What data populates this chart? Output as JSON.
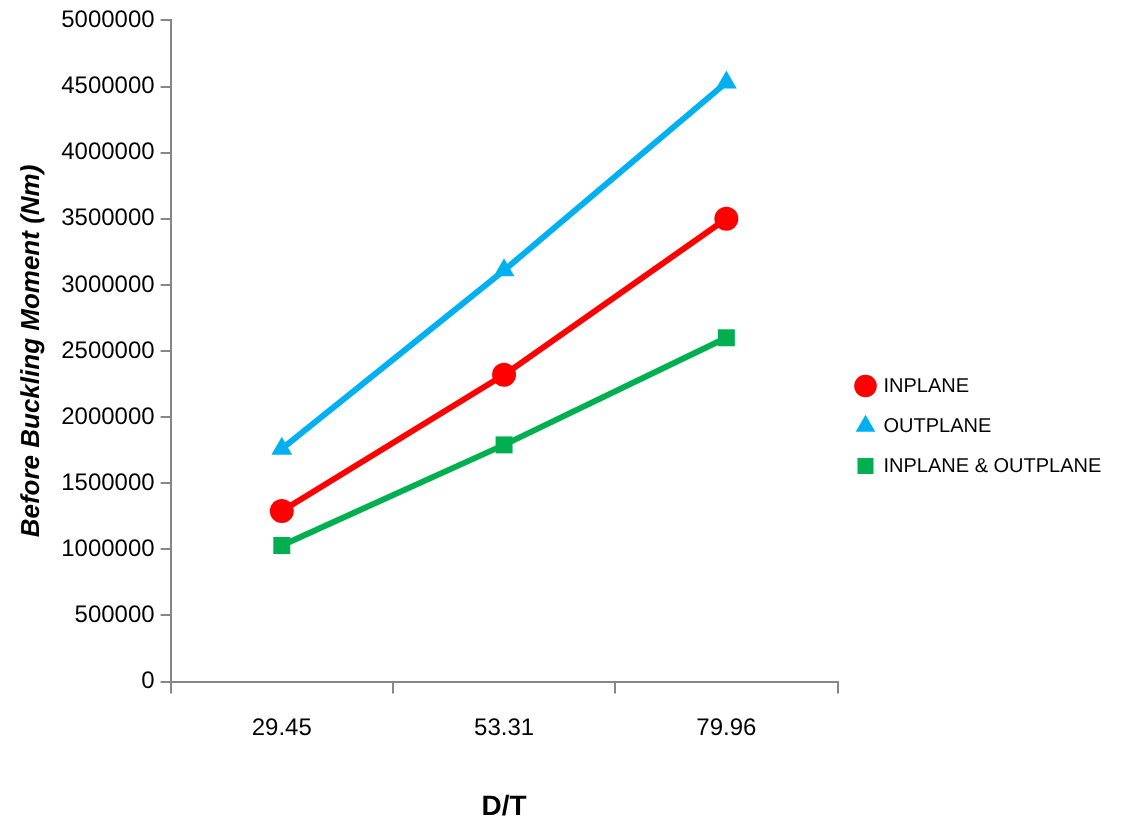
{
  "chart_data": {
    "type": "line",
    "xlabel": "D/T",
    "ylabel": "Before Buckling Moment (Nm)",
    "categories": [
      "29.45",
      "53.31",
      "79.96"
    ],
    "series": [
      {
        "name": "INPLANE",
        "color": "#ff0000",
        "marker": "circle",
        "values": [
          1290000,
          2320000,
          3500000
        ]
      },
      {
        "name": "OUTPLANE",
        "color": "#00b0f0",
        "marker": "triangle",
        "values": [
          1760000,
          3110000,
          4530000
        ]
      },
      {
        "name": "INPLANE & OUTPLANE",
        "color": "#00b050",
        "marker": "square",
        "values": [
          1030000,
          1790000,
          2600000
        ]
      }
    ],
    "ylim": [
      0,
      5000000
    ],
    "yticks": [
      0,
      500000,
      1000000,
      1500000,
      2000000,
      2500000,
      3000000,
      3500000,
      4000000,
      4500000,
      5000000
    ],
    "grid": false,
    "legend": "right"
  }
}
